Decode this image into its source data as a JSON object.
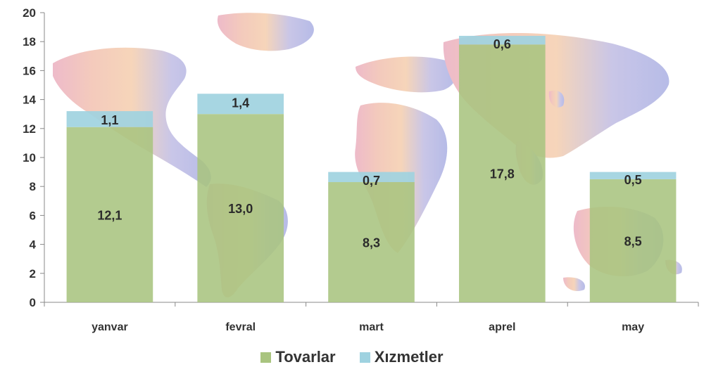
{
  "chart_data": {
    "type": "bar",
    "stacked": true,
    "categories": [
      "yanvar",
      "fevral",
      "mart",
      "aprel",
      "may"
    ],
    "series": [
      {
        "name": "Tovarlar",
        "values": [
          12.1,
          13.0,
          8.3,
          17.8,
          8.5
        ],
        "labels": [
          "12,1",
          "13,0",
          "8,3",
          "17,8",
          "8,5"
        ],
        "color": "#a9c47f"
      },
      {
        "name": "Xızmetler",
        "values": [
          1.1,
          1.4,
          0.7,
          0.6,
          0.5
        ],
        "labels": [
          "1,1",
          "1,4",
          "0,7",
          "0,6",
          "0,5"
        ],
        "color": "#9fd2e0"
      }
    ],
    "title": "",
    "xlabel": "",
    "ylabel": "",
    "ylim": [
      0,
      20
    ],
    "yticks": [
      0,
      2,
      4,
      6,
      8,
      10,
      12,
      14,
      16,
      18,
      20
    ],
    "grid": false,
    "legend": "bottom",
    "background": "world-map"
  }
}
